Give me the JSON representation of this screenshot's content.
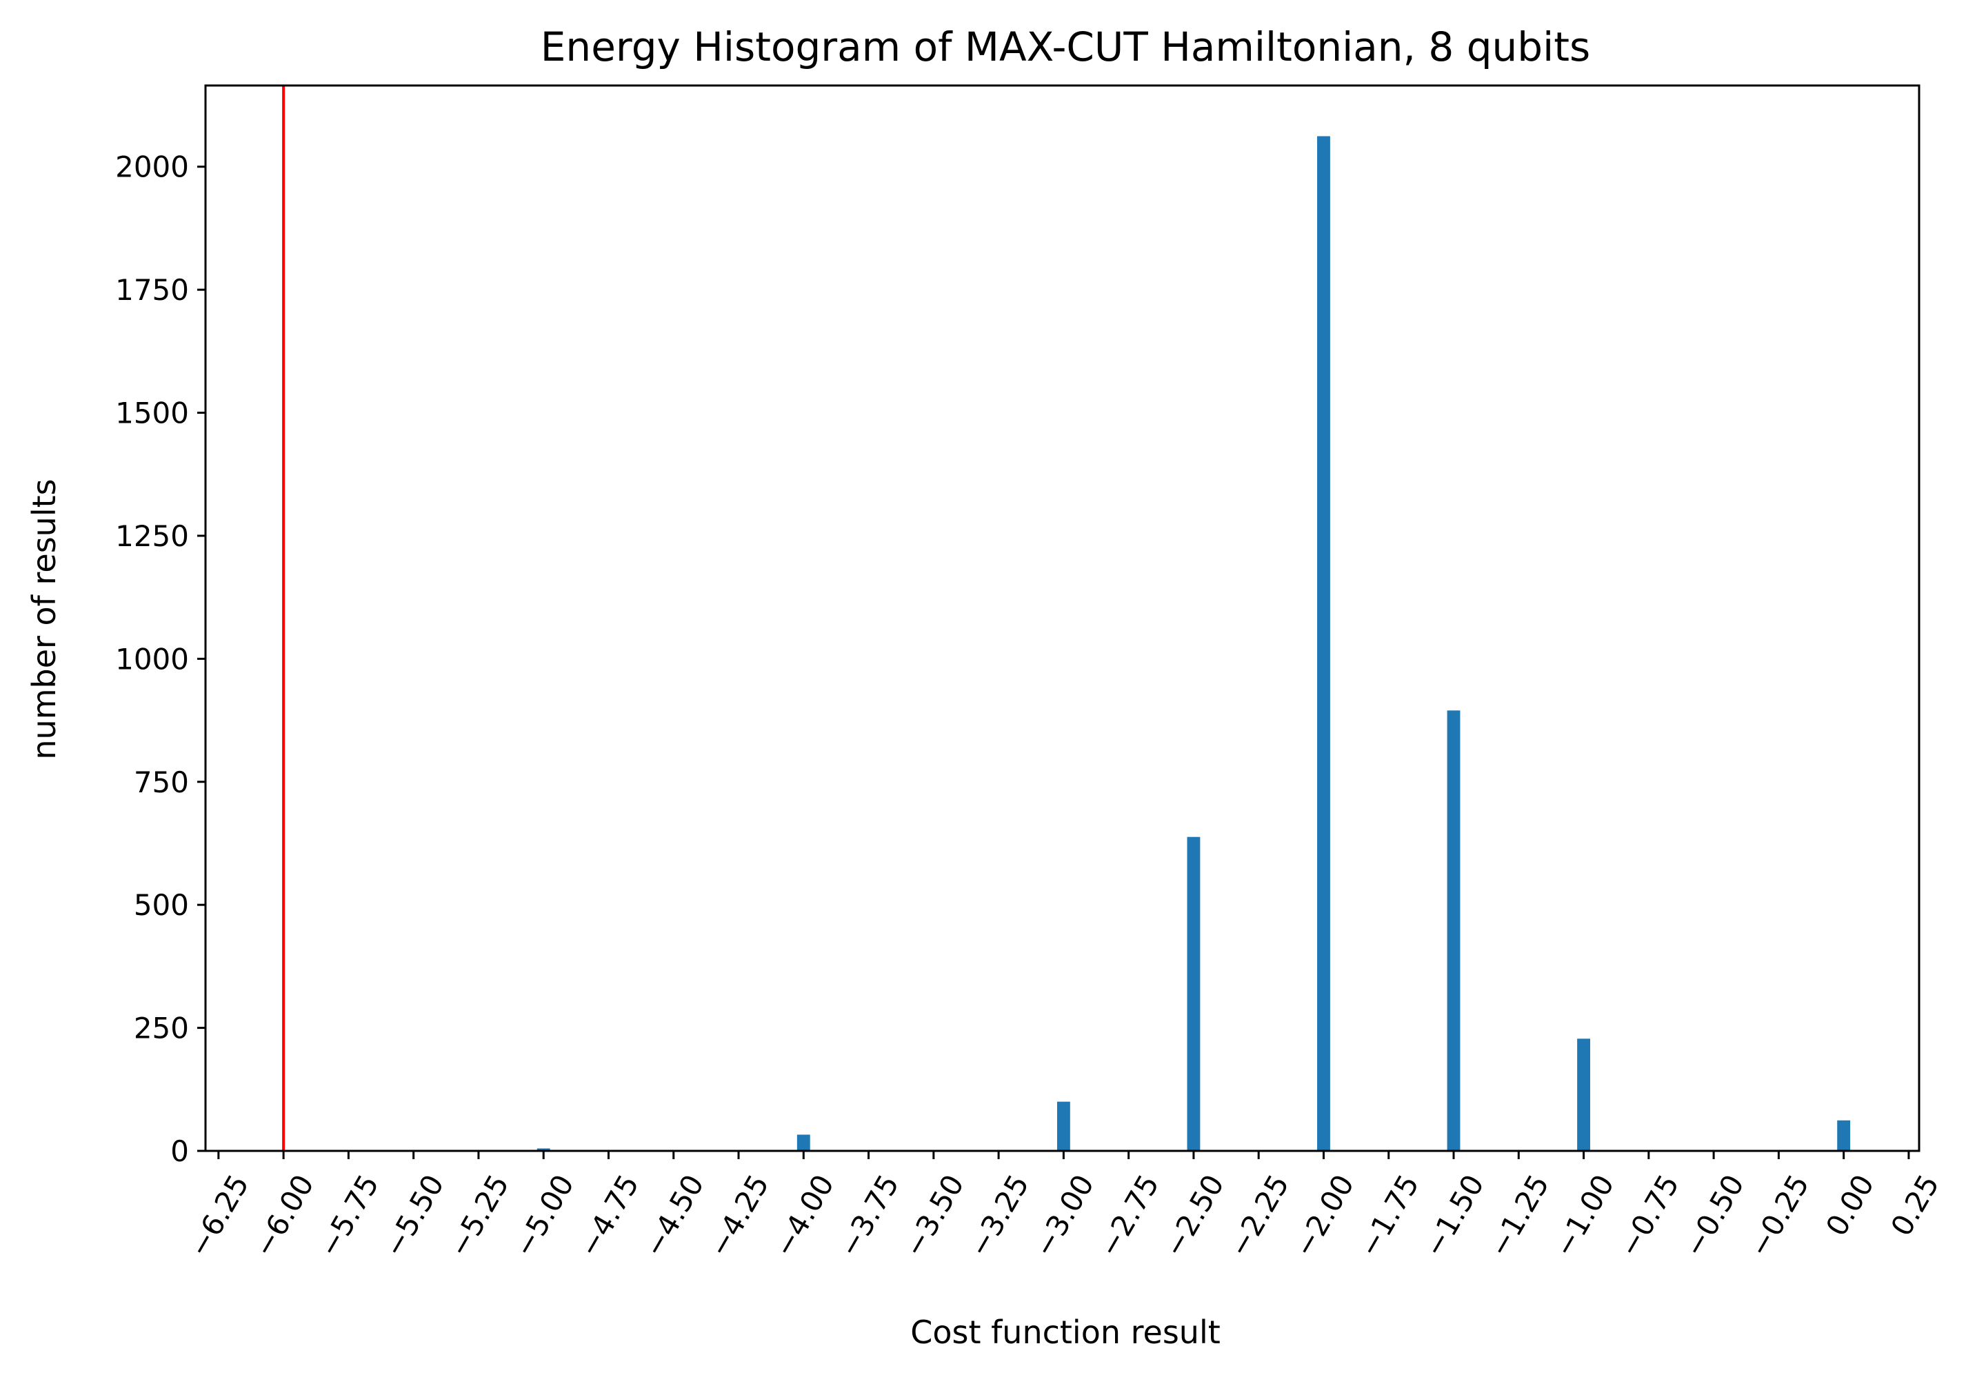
{
  "chart_data": {
    "type": "bar",
    "title": "Energy Histogram of MAX-CUT Hamiltonian, 8 qubits",
    "xlabel": "Cost function result",
    "ylabel": "number of results",
    "xlim": [
      -6.3,
      0.29
    ],
    "ylim": [
      0,
      2165
    ],
    "bar_color": "#1f77b4",
    "bar_width": 0.05,
    "x": [
      -5.0,
      -4.0,
      -3.0,
      -2.5,
      -2.0,
      -1.5,
      -1.0,
      0.0
    ],
    "values": [
      5,
      33,
      100,
      638,
      2062,
      895,
      228,
      62
    ],
    "reference_line": {
      "x": -6.0,
      "color": "#ff0000"
    },
    "x_ticks": [
      {
        "value": -6.25,
        "label": "−6.25"
      },
      {
        "value": -6.0,
        "label": "−6.00"
      },
      {
        "value": -5.75,
        "label": "−5.75"
      },
      {
        "value": -5.5,
        "label": "−5.50"
      },
      {
        "value": -5.25,
        "label": "−5.25"
      },
      {
        "value": -5.0,
        "label": "−5.00"
      },
      {
        "value": -4.75,
        "label": "−4.75"
      },
      {
        "value": -4.5,
        "label": "−4.50"
      },
      {
        "value": -4.25,
        "label": "−4.25"
      },
      {
        "value": -4.0,
        "label": "−4.00"
      },
      {
        "value": -3.75,
        "label": "−3.75"
      },
      {
        "value": -3.5,
        "label": "−3.50"
      },
      {
        "value": -3.25,
        "label": "−3.25"
      },
      {
        "value": -3.0,
        "label": "−3.00"
      },
      {
        "value": -2.75,
        "label": "−2.75"
      },
      {
        "value": -2.5,
        "label": "−2.50"
      },
      {
        "value": -2.25,
        "label": "−2.25"
      },
      {
        "value": -2.0,
        "label": "−2.00"
      },
      {
        "value": -1.75,
        "label": "−1.75"
      },
      {
        "value": -1.5,
        "label": "−1.50"
      },
      {
        "value": -1.25,
        "label": "−1.25"
      },
      {
        "value": -1.0,
        "label": "−1.00"
      },
      {
        "value": -0.75,
        "label": "−0.75"
      },
      {
        "value": -0.5,
        "label": "−0.50"
      },
      {
        "value": -0.25,
        "label": "−0.25"
      },
      {
        "value": 0.0,
        "label": "0.00"
      },
      {
        "value": 0.25,
        "label": "0.25"
      }
    ],
    "y_ticks": [
      {
        "value": 0,
        "label": "0"
      },
      {
        "value": 250,
        "label": "250"
      },
      {
        "value": 500,
        "label": "500"
      },
      {
        "value": 750,
        "label": "750"
      },
      {
        "value": 1000,
        "label": "1000"
      },
      {
        "value": 1250,
        "label": "1250"
      },
      {
        "value": 1500,
        "label": "1500"
      },
      {
        "value": 1750,
        "label": "1750"
      },
      {
        "value": 2000,
        "label": "2000"
      }
    ],
    "grid": false,
    "legend": "none"
  }
}
